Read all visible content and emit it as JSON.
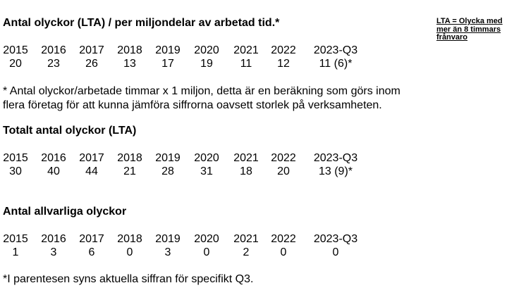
{
  "sections": [
    {
      "heading": "Antal olyckor (LTA) / per miljondelar av arbetad tid.*",
      "years": [
        "2015",
        "2016",
        "2017",
        "2018",
        "2019",
        "2020",
        "2021",
        "2022",
        "2023-Q3"
      ],
      "values": [
        "20",
        "23",
        "26",
        "13",
        "17",
        "19",
        "11",
        "12",
        "11 (6)*"
      ]
    },
    {
      "heading": "Totalt antal olyckor (LTA)",
      "years": [
        "2015",
        "2016",
        "2017",
        "2018",
        "2019",
        "2020",
        "2021",
        "2022",
        "2023-Q3"
      ],
      "values": [
        "30",
        "40",
        "44",
        "21",
        "28",
        "31",
        "18",
        "20",
        "13 (9)*"
      ]
    },
    {
      "heading": "Antal allvarliga olyckor",
      "years": [
        "2015",
        "2016",
        "2017",
        "2018",
        "2019",
        "2020",
        "2021",
        "2022",
        "2023-Q3"
      ],
      "values": [
        "1",
        "3",
        "6",
        "0",
        "3",
        "0",
        "2",
        "0",
        "0"
      ]
    }
  ],
  "side_note": {
    "line1": "LTA = Olycka med",
    "line2": "mer än 8 timmars",
    "line3": "frånvaro"
  },
  "footnote_rate": {
    "line1": "* Antal olyckor/arbetade timmar x 1 miljon, detta är en beräkning som görs inom",
    "line2": "flera företag för att kunna jämföra siffrorna oavsett storlek på verksamheten."
  },
  "footnote_parenthesis": "*I parentesen syns aktuella siffran för specifikt Q3."
}
